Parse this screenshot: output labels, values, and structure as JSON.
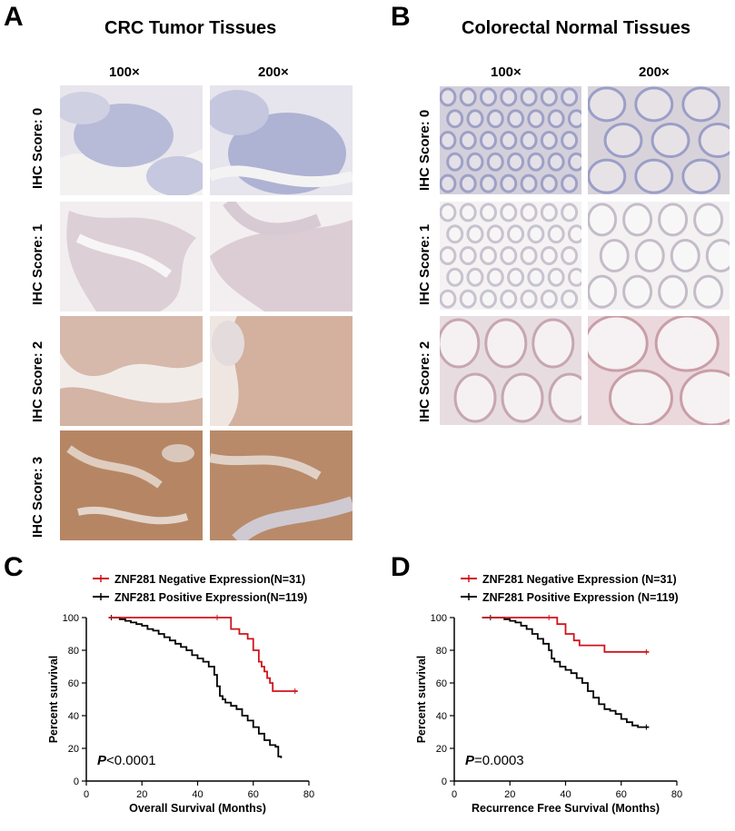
{
  "panels": {
    "A": {
      "letter": "A",
      "title": "CRC Tumor Tissues",
      "magnifications": [
        "100×",
        "200×"
      ],
      "rows": [
        "IHC Score: 0",
        "IHC Score: 1",
        "IHC Score: 2",
        "IHC Score: 3"
      ]
    },
    "B": {
      "letter": "B",
      "title": "Colorectal Normal Tissues",
      "magnifications": [
        "100×",
        "200×"
      ],
      "rows": [
        "IHC Score: 0",
        "IHC Score: 1",
        "IHC Score: 2"
      ]
    },
    "C": {
      "letter": "C",
      "pvalue_label": "P",
      "pvalue_text": "<0.0001"
    },
    "D": {
      "letter": "D",
      "pvalue_label": "P",
      "pvalue_text": "=0.0003"
    }
  },
  "colors": {
    "negative": "#d0121b",
    "positive": "#000000",
    "stain_score0": "#b9bdd9",
    "stain_score1": "#dbcdd2",
    "stain_score2": "#d6b7a5",
    "stain_score3": "#b5825e"
  },
  "chart_data": [
    {
      "type": "line",
      "step": true,
      "ylabel": "Percent survival",
      "xlabel": "Overall Survival (Months)",
      "xlim": [
        0,
        80
      ],
      "ylim": [
        0,
        100
      ],
      "xticks": [
        0,
        20,
        40,
        60,
        80
      ],
      "yticks": [
        0,
        20,
        40,
        60,
        80,
        100
      ],
      "series": [
        {
          "name": "ZNF281 Negative Expression(N=31)",
          "color": "#d0121b",
          "x": [
            8,
            48,
            52,
            55,
            58,
            60,
            62,
            63,
            64,
            65,
            66,
            67,
            76
          ],
          "y": [
            100,
            100,
            93,
            90,
            87,
            80,
            73,
            70,
            67,
            63,
            60,
            55,
            55
          ]
        },
        {
          "name": "ZNF281 Positive Expression(N=119)",
          "color": "#000000",
          "x": [
            8,
            10,
            12,
            14,
            16,
            18,
            20,
            22,
            24,
            26,
            28,
            30,
            32,
            34,
            36,
            38,
            40,
            42,
            44,
            46,
            47,
            48,
            49,
            50,
            52,
            54,
            56,
            58,
            60,
            62,
            64,
            66,
            68,
            69,
            70
          ],
          "y": [
            100,
            100,
            99,
            98,
            97,
            96,
            95,
            93,
            92,
            90,
            88,
            86,
            84,
            82,
            80,
            77,
            75,
            73,
            70,
            65,
            58,
            52,
            50,
            48,
            46,
            44,
            40,
            37,
            33,
            29,
            25,
            22,
            21,
            15,
            14
          ]
        }
      ]
    },
    {
      "type": "line",
      "step": true,
      "ylabel": "Percent survival",
      "xlabel": "Recurrence Free Survival (Months)",
      "xlim": [
        0,
        80
      ],
      "ylim": [
        0,
        100
      ],
      "xticks": [
        0,
        20,
        40,
        60,
        80
      ],
      "yticks": [
        0,
        20,
        40,
        60,
        80,
        100
      ],
      "series": [
        {
          "name": "ZNF281 Negative Expression (N=31)",
          "color": "#d0121b",
          "x": [
            10,
            35,
            37,
            40,
            43,
            45,
            54,
            70
          ],
          "y": [
            100,
            100,
            96,
            90,
            86,
            83,
            79,
            79
          ]
        },
        {
          "name": "ZNF281 Positive Expression (N=119)",
          "color": "#000000",
          "x": [
            10,
            14,
            18,
            20,
            22,
            24,
            26,
            28,
            30,
            32,
            34,
            35,
            36,
            38,
            40,
            42,
            44,
            46,
            48,
            50,
            52,
            54,
            56,
            58,
            60,
            62,
            64,
            66,
            70
          ],
          "y": [
            100,
            100,
            99,
            98,
            97,
            95,
            93,
            90,
            87,
            84,
            80,
            75,
            73,
            70,
            68,
            66,
            63,
            60,
            55,
            51,
            47,
            44,
            43,
            41,
            38,
            36,
            34,
            33,
            33
          ]
        }
      ]
    }
  ]
}
